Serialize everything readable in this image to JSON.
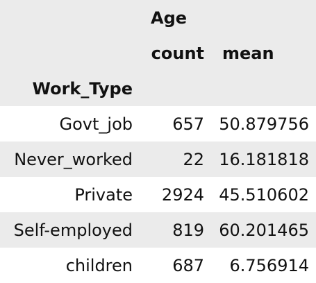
{
  "header": {
    "group_label": "Age",
    "col_count": "count",
    "col_mean": "mean",
    "index_name": "Work_Type"
  },
  "rows": [
    {
      "label": "Govt_job",
      "count": "657",
      "mean": "50.879756"
    },
    {
      "label": "Never_worked",
      "count": "22",
      "mean": "16.181818"
    },
    {
      "label": "Private",
      "count": "2924",
      "mean": "45.510602"
    },
    {
      "label": "Self-employed",
      "count": "819",
      "mean": "60.201465"
    },
    {
      "label": "children",
      "count": "687",
      "mean": "6.756914"
    }
  ],
  "colors": {
    "shade": "#ebebeb",
    "background": "#ffffff",
    "text": "#111111"
  }
}
